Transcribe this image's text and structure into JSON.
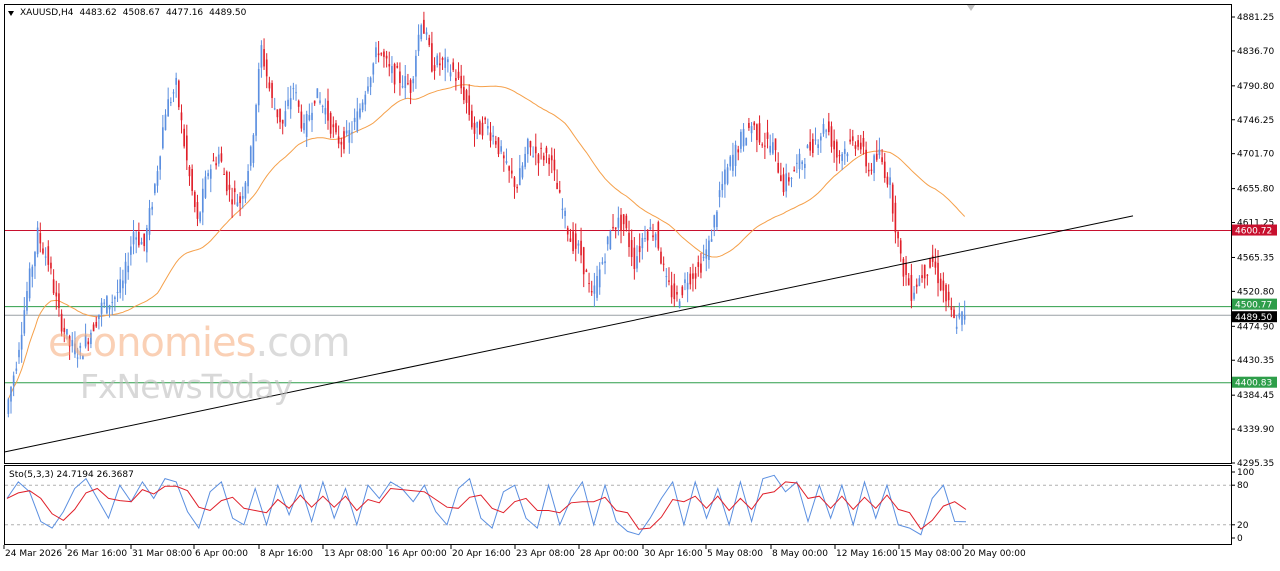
{
  "header": {
    "symbol": "XAUUSD,H4",
    "open": "4483.62",
    "high": "4508.67",
    "low": "4477.16",
    "close": "4489.50"
  },
  "watermark": {
    "line1_main": "economies",
    "line1_suffix": ".com",
    "line2": "FxNewsToday"
  },
  "colors": {
    "bull": "#5b8fe0",
    "bear": "#e0202a",
    "ma": "#f5a04a",
    "resistance": "#c8102e",
    "support": "#2e9e4a",
    "trendline": "#000000",
    "sto_main": "#5b8fe0",
    "sto_signal": "#e0202a",
    "price_tag": "#000000"
  },
  "chart_data": [
    {
      "type": "candlestick",
      "title": "XAUUSD,H4 4483.62 4508.67 4477.16 4489.50",
      "ylim": [
        4295.35,
        4897.0
      ],
      "y_ticks": [
        "4881.25",
        "4836.70",
        "4790.80",
        "4746.25",
        "4701.70",
        "4655.80",
        "4611.25",
        "4565.35",
        "4520.80",
        "4474.90",
        "4430.35",
        "4384.45",
        "4339.90",
        "4295.35"
      ],
      "x_ticks": [
        "24 Mar 2026",
        "26 Mar 16:00",
        "31 Mar 08:00",
        "6 Apr 00:00",
        "8 Apr 16:00",
        "13 Apr 08:00",
        "16 Apr 00:00",
        "20 Apr 16:00",
        "23 Apr 08:00",
        "28 Apr 00:00",
        "30 Apr 16:00",
        "5 May 08:00",
        "8 May 00:00",
        "12 May 16:00",
        "15 May 08:00",
        "20 May 00:00"
      ],
      "close_path": [
        4360,
        4430,
        4520,
        4595,
        4560,
        4490,
        4450,
        4440,
        4470,
        4500,
        4510,
        4530,
        4600,
        4580,
        4660,
        4760,
        4790,
        4690,
        4610,
        4680,
        4700,
        4650,
        4640,
        4700,
        4840,
        4770,
        4740,
        4790,
        4730,
        4780,
        4760,
        4720,
        4720,
        4750,
        4800,
        4840,
        4810,
        4800,
        4790,
        4880,
        4820,
        4820,
        4810,
        4780,
        4730,
        4740,
        4720,
        4680,
        4660,
        4710,
        4700,
        4700,
        4640,
        4590,
        4570,
        4510,
        4560,
        4610,
        4610,
        4560,
        4600,
        4600,
        4530,
        4510,
        4540,
        4550,
        4580,
        4650,
        4690,
        4720,
        4740,
        4720,
        4710,
        4660,
        4680,
        4700,
        4720,
        4740,
        4700,
        4710,
        4720,
        4680,
        4700,
        4660,
        4560,
        4520,
        4545,
        4560,
        4520,
        4480,
        4489.5
      ],
      "moving_average_end": 4640,
      "horizontal_levels": [
        {
          "value": 4600.72,
          "label": "4600.72",
          "style": "resistance"
        },
        {
          "value": 4500.77,
          "label": "4500.77",
          "style": "support"
        },
        {
          "value": 4489.5,
          "label": "4489.50",
          "style": "current"
        },
        {
          "value": 4400.83,
          "label": "4400.83",
          "style": "support"
        }
      ],
      "trendline": {
        "from": {
          "x": "24 Mar 2026",
          "y": 4310
        },
        "to": {
          "x": "20 May 00:00",
          "y": 4620
        }
      }
    },
    {
      "type": "line",
      "title": "Sto(5,3,3) 24.7194 26.3687",
      "ylim": [
        0,
        100
      ],
      "y_ticks": [
        "100",
        "80",
        "20",
        "0"
      ],
      "levels": [
        80,
        20
      ],
      "series": [
        {
          "name": "Sto main",
          "value_last": 24.7194
        },
        {
          "name": "Sto signal",
          "value_last": 26.3687
        }
      ],
      "main_values": [
        60,
        85,
        70,
        25,
        15,
        40,
        75,
        90,
        60,
        30,
        80,
        55,
        85,
        60,
        90,
        85,
        40,
        15,
        70,
        85,
        30,
        20,
        75,
        20,
        80,
        35,
        80,
        25,
        85,
        30,
        75,
        20,
        80,
        60,
        85,
        75,
        55,
        80,
        40,
        20,
        75,
        90,
        30,
        15,
        70,
        80,
        30,
        15,
        80,
        20,
        60,
        85,
        20,
        80,
        25,
        10,
        5,
        30,
        60,
        85,
        20,
        85,
        30,
        75,
        20,
        85,
        25,
        90,
        95,
        70,
        85,
        25,
        80,
        30,
        80,
        20,
        85,
        30,
        80,
        20,
        15,
        5,
        60,
        80,
        25,
        24.7
      ]
    }
  ],
  "sto_label": "Sto(5,3,3) 24.7194 26.3687"
}
